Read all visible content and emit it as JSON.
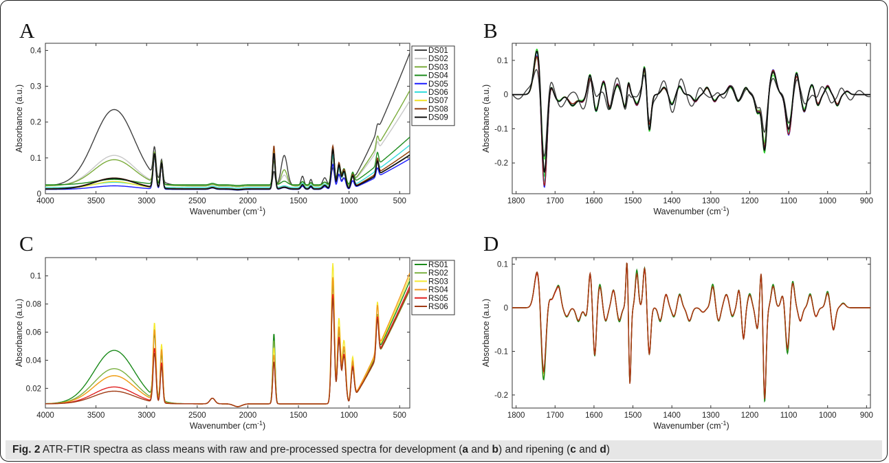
{
  "caption": {
    "fig": "Fig. 2",
    "text_1": " ATR-FTIR spectra as class means with raw and pre-processed spectra for development (",
    "a": "a",
    "and_1": " and ",
    "b": "b",
    "text_2": ") and ripening (",
    "c": "c",
    "and_2": " and ",
    "d": "d",
    "text_3": ")"
  },
  "chart_data": [
    {
      "panel": "A",
      "type": "line",
      "xlabel": "Wavenumber (cm",
      "xlabel_sup": "-1",
      "xlabel_end": ")",
      "ylabel": "Absorbance (a.u.)",
      "xlim": [
        4000,
        400
      ],
      "x_reversed": true,
      "ylim": [
        0,
        0.42
      ],
      "xticks": [
        4000,
        3500,
        3000,
        2500,
        2000,
        1500,
        1000,
        500
      ],
      "yticks": [
        0,
        0.1,
        0.2,
        0.3,
        0.4
      ],
      "yticklabels": [
        "0",
        "0.1",
        "0.2",
        "0.3",
        "0.4"
      ],
      "legend": "right",
      "series": [
        {
          "name": "DS01",
          "color": "#404040",
          "base": 0.022,
          "band3300": 0.213,
          "band2900": 0.08,
          "band1740": 0.04,
          "band1640": 0.085,
          "band1450": 0.045,
          "band1160": 0.05,
          "tail": 0.39
        },
        {
          "name": "DS02",
          "color": "#c8c8c8",
          "base": 0.022,
          "band3300": 0.085,
          "band2900": 0.08,
          "band1740": 0.08,
          "band1640": 0.03,
          "band1450": 0.02,
          "band1160": 0.07,
          "tail": 0.25
        },
        {
          "name": "DS03",
          "color": "#7aab3a",
          "base": 0.022,
          "band3300": 0.073,
          "band2900": 0.085,
          "band1740": 0.07,
          "band1640": 0.045,
          "band1450": 0.02,
          "band1160": 0.08,
          "tail": 0.28
        },
        {
          "name": "DS04",
          "color": "#1e8c1e",
          "base": 0.025,
          "band3300": 0.015,
          "band2900": 0.075,
          "band1740": 0.1,
          "band1640": 0.01,
          "band1450": 0.015,
          "band1160": 0.1,
          "tail": 0.14
        },
        {
          "name": "DS05",
          "color": "#1a1aff",
          "base": 0.012,
          "band3300": 0.01,
          "band2900": 0.09,
          "band1740": 0.1,
          "band1640": 0.005,
          "band1450": 0.015,
          "band1160": 0.07,
          "tail": 0.09
        },
        {
          "name": "DS06",
          "color": "#33dddd",
          "base": 0.017,
          "band3300": 0.015,
          "band2900": 0.085,
          "band1740": 0.1,
          "band1640": 0.005,
          "band1450": 0.02,
          "band1160": 0.09,
          "tail": 0.125
        },
        {
          "name": "DS07",
          "color": "#f0e020",
          "base": 0.014,
          "band3300": 0.02,
          "band2900": 0.09,
          "band1740": 0.11,
          "band1640": 0.005,
          "band1450": 0.02,
          "band1160": 0.11,
          "tail": 0.11
        },
        {
          "name": "DS08",
          "color": "#8b3a10",
          "base": 0.014,
          "band3300": 0.03,
          "band2900": 0.09,
          "band1740": 0.12,
          "band1640": 0.005,
          "band1450": 0.02,
          "band1160": 0.12,
          "tail": 0.11
        },
        {
          "name": "DS09",
          "color": "#111111",
          "base": 0.013,
          "band3300": 0.03,
          "band2900": 0.095,
          "band1740": 0.1,
          "band1640": 0.005,
          "band1450": 0.02,
          "band1160": 0.11,
          "tail": 0.1
        }
      ]
    },
    {
      "panel": "B",
      "type": "line",
      "xlabel": "Wavenumber (cm",
      "xlabel_sup": "-1",
      "xlabel_end": ")",
      "ylabel": "Absorbance (a.u.)",
      "xlim": [
        1810,
        890
      ],
      "x_reversed": true,
      "ylim": [
        -0.29,
        0.15
      ],
      "xticks": [
        1800,
        1700,
        1600,
        1500,
        1400,
        1300,
        1200,
        1100,
        1000,
        900
      ],
      "yticks": [
        -0.2,
        -0.1,
        0,
        0.1
      ],
      "yticklabels": [
        "-0.2",
        "-0.1",
        "0",
        "0.1"
      ],
      "series": [
        {
          "name": "DS02",
          "color": "#c8c8c8",
          "scale": 0.95
        },
        {
          "name": "DS03",
          "color": "#7aab3a",
          "scale": 0.9
        },
        {
          "name": "DS04",
          "color": "#22cc22",
          "scale": 1.05
        },
        {
          "name": "DS05",
          "color": "#2020ee",
          "scale": 1.0
        },
        {
          "name": "DS06",
          "color": "#33dddd",
          "scale": 1.02
        },
        {
          "name": "DS07",
          "color": "#55ee55",
          "scale": 0.85
        },
        {
          "name": "DS08",
          "color": "#a02020",
          "scale": 0.98
        },
        {
          "name": "DS01",
          "color": "#404040",
          "scale": 0.7
        },
        {
          "name": "DS09",
          "color": "#111111",
          "scale": 1.0
        }
      ]
    },
    {
      "panel": "C",
      "type": "line",
      "xlabel": "Wavenumber (cm",
      "xlabel_sup": "-1",
      "xlabel_end": ")",
      "ylabel": "Absorbance (a.u.)",
      "xlim": [
        4000,
        400
      ],
      "x_reversed": true,
      "ylim": [
        0.006,
        0.113
      ],
      "xticks": [
        4000,
        3500,
        3000,
        2500,
        2000,
        1500,
        1000,
        500
      ],
      "yticks": [
        0.02,
        0.04,
        0.06,
        0.08,
        0.1
      ],
      "yticklabels": [
        "0.02",
        "0.04",
        "0.06",
        "0.08",
        "0.1"
      ],
      "legend": "right",
      "series": [
        {
          "name": "RS01",
          "color": "#1a8a1a",
          "base": 0.009,
          "band3300": 0.038,
          "band2900": 0.045,
          "band1740": 0.05,
          "band1160": 0.078,
          "tail": 0.092
        },
        {
          "name": "RS02",
          "color": "#7ab040",
          "base": 0.009,
          "band3300": 0.025,
          "band2900": 0.05,
          "band1740": 0.045,
          "band1160": 0.085,
          "tail": 0.085
        },
        {
          "name": "RS03",
          "color": "#f5ea30",
          "base": 0.009,
          "band3300": 0.02,
          "band2900": 0.055,
          "band1740": 0.04,
          "band1160": 0.1,
          "tail": 0.095
        },
        {
          "name": "RS04",
          "color": "#f09a20",
          "base": 0.009,
          "band3300": 0.02,
          "band2900": 0.05,
          "band1740": 0.035,
          "band1160": 0.09,
          "tail": 0.098
        },
        {
          "name": "RS05",
          "color": "#e02020",
          "base": 0.009,
          "band3300": 0.012,
          "band2900": 0.038,
          "band1740": 0.03,
          "band1160": 0.078,
          "tail": 0.088
        },
        {
          "name": "RS06",
          "color": "#a03a14",
          "base": 0.009,
          "band3300": 0.009,
          "band2900": 0.035,
          "band1740": 0.03,
          "band1160": 0.075,
          "tail": 0.086
        }
      ]
    },
    {
      "panel": "D",
      "type": "line",
      "xlabel": "Wavenumber (cm",
      "xlabel_sup": "-1",
      "xlabel_end": ")",
      "ylabel": "Absorbance (a.u.)",
      "xlim": [
        1810,
        890
      ],
      "x_reversed": true,
      "ylim": [
        -0.23,
        0.115
      ],
      "xticks": [
        1800,
        1700,
        1600,
        1500,
        1400,
        1300,
        1200,
        1100,
        1000,
        900
      ],
      "yticks": [
        -0.2,
        -0.1,
        0,
        0.1
      ],
      "yticklabels": [
        "-0.2",
        "-0.1",
        "0",
        "0.1"
      ],
      "series": [
        {
          "name": "RS03",
          "color": "#f5ea30",
          "scale": 1.02
        },
        {
          "name": "RS04",
          "color": "#f0a020",
          "scale": 1.0
        },
        {
          "name": "RS02",
          "color": "#7ab040",
          "scale": 0.98
        },
        {
          "name": "RS01",
          "color": "#1a8a1a",
          "scale": 1.05
        },
        {
          "name": "RS05",
          "color": "#e02020",
          "scale": 0.97
        },
        {
          "name": "RS06",
          "color": "#a03a14",
          "scale": 1.0
        }
      ]
    }
  ]
}
